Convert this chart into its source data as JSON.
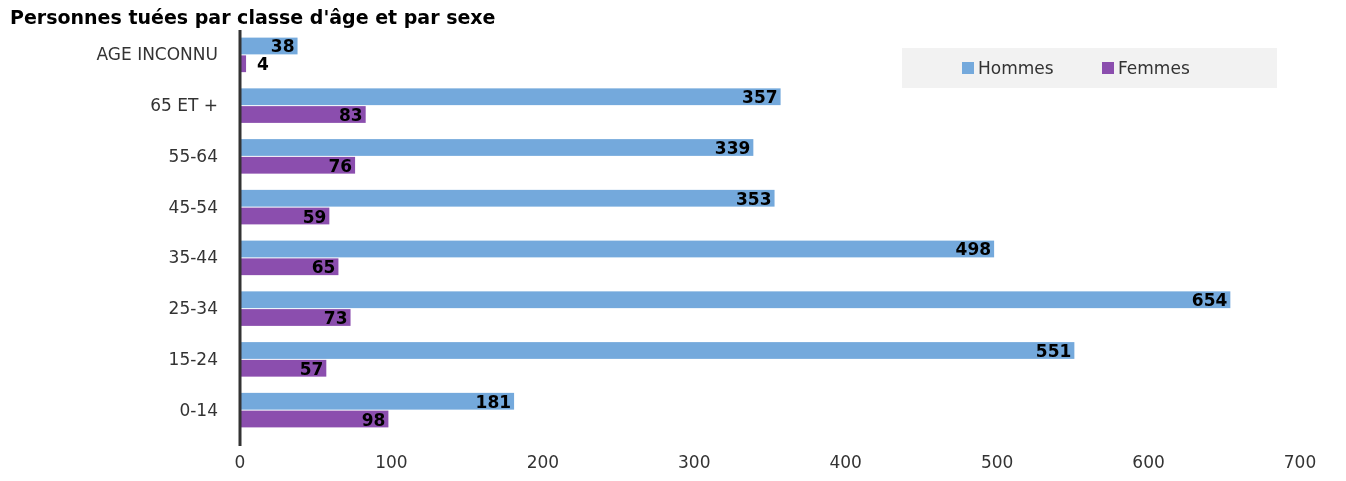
{
  "chart_data": {
    "type": "bar",
    "orientation": "horizontal",
    "title": "Personnes tuées par classe d'âge et par sexe",
    "categories": [
      "AGE INCONNU",
      "65 ET +",
      "55-64",
      "45-54",
      "35-44",
      "25-34",
      "15-24",
      "0-14"
    ],
    "series": [
      {
        "name": "Hommes",
        "color": "#74a9dc",
        "values": [
          38,
          357,
          339,
          353,
          498,
          654,
          551,
          181
        ]
      },
      {
        "name": "Femmes",
        "color": "#8b4eae",
        "values": [
          4,
          83,
          76,
          59,
          65,
          73,
          57,
          98
        ]
      }
    ],
    "xlim": [
      0,
      700
    ],
    "xticks": [
      0,
      100,
      200,
      300,
      400,
      500,
      600,
      700
    ],
    "data_labels": true,
    "legend": "top right",
    "grid": false
  }
}
